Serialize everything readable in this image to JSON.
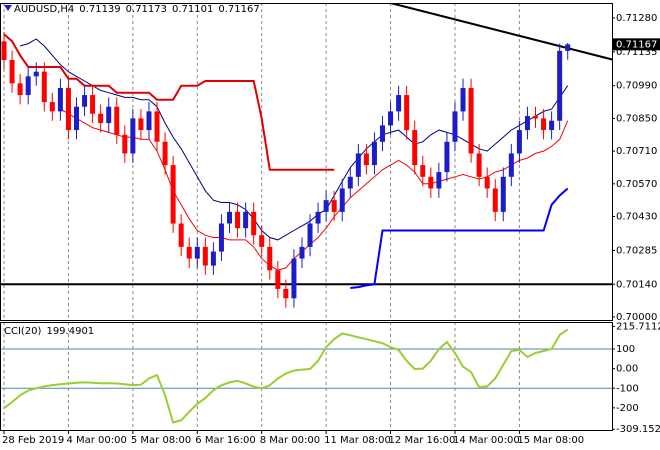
{
  "chart_data": [
    {
      "type": "candlestick",
      "symbol": "AUDUSD,H4",
      "up_color": "#1c1cc8",
      "down_color": "#ff0000",
      "open": [
        0.7118,
        0.711,
        0.71,
        0.7095,
        0.7103,
        0.7105,
        0.7092,
        0.7088,
        0.7098,
        0.708,
        0.709,
        0.7095,
        0.7087,
        0.7083,
        0.709,
        0.7078,
        0.707,
        0.7085,
        0.708,
        0.7088,
        0.7075,
        0.7065,
        0.704,
        0.703,
        0.7025,
        0.703,
        0.7022,
        0.7028,
        0.704,
        0.7045,
        0.7038,
        0.7045,
        0.7035,
        0.703,
        0.702,
        0.7012,
        0.7008,
        0.7025,
        0.703,
        0.704,
        0.7045,
        0.705,
        0.7045,
        0.7055,
        0.706,
        0.707,
        0.7065,
        0.7075,
        0.7082,
        0.7088,
        0.7095,
        0.708,
        0.7065,
        0.706,
        0.7055,
        0.7062,
        0.7075,
        0.7088,
        0.7098,
        0.707,
        0.706,
        0.7055,
        0.7045,
        0.706,
        0.707,
        0.708,
        0.7086,
        0.7085,
        0.708,
        0.7084,
        0.71139
      ],
      "high": [
        0.7122,
        0.7114,
        0.7104,
        0.7107,
        0.7109,
        0.7109,
        0.7096,
        0.7102,
        0.7102,
        0.7094,
        0.7099,
        0.7099,
        0.7091,
        0.7094,
        0.7094,
        0.7082,
        0.7089,
        0.7089,
        0.7092,
        0.7092,
        0.7079,
        0.7069,
        0.7044,
        0.7034,
        0.7034,
        0.7034,
        0.7032,
        0.7044,
        0.7049,
        0.7049,
        0.7049,
        0.7049,
        0.7039,
        0.7034,
        0.7024,
        0.7016,
        0.7029,
        0.7034,
        0.7044,
        0.7049,
        0.7054,
        0.7054,
        0.7059,
        0.7064,
        0.7074,
        0.7074,
        0.7079,
        0.7086,
        0.7092,
        0.7099,
        0.7099,
        0.7084,
        0.7069,
        0.7064,
        0.7066,
        0.7079,
        0.7092,
        0.7102,
        0.7102,
        0.7074,
        0.7064,
        0.7059,
        0.7064,
        0.7074,
        0.7084,
        0.709,
        0.709,
        0.7089,
        0.7088,
        0.7117,
        0.71173
      ],
      "low": [
        0.7106,
        0.7096,
        0.7091,
        0.7091,
        0.7099,
        0.7088,
        0.7084,
        0.7084,
        0.7076,
        0.7076,
        0.7086,
        0.7083,
        0.7079,
        0.7079,
        0.7074,
        0.7066,
        0.7066,
        0.7076,
        0.7076,
        0.7071,
        0.7061,
        0.7036,
        0.7026,
        0.7021,
        0.7021,
        0.7018,
        0.7018,
        0.7024,
        0.7036,
        0.7034,
        0.7034,
        0.7031,
        0.7026,
        0.7016,
        0.7008,
        0.7004,
        0.7004,
        0.7021,
        0.7026,
        0.7036,
        0.7041,
        0.7041,
        0.7041,
        0.7051,
        0.7056,
        0.7061,
        0.7061,
        0.7071,
        0.7078,
        0.7084,
        0.7076,
        0.7061,
        0.7056,
        0.7051,
        0.7051,
        0.7058,
        0.7071,
        0.7084,
        0.7066,
        0.7056,
        0.7051,
        0.7041,
        0.7041,
        0.7056,
        0.7066,
        0.7076,
        0.7081,
        0.7076,
        0.7076,
        0.708,
        0.71101
      ],
      "close": [
        0.711,
        0.71,
        0.7095,
        0.7103,
        0.7105,
        0.7092,
        0.7088,
        0.7098,
        0.708,
        0.709,
        0.7095,
        0.7087,
        0.7083,
        0.709,
        0.7078,
        0.707,
        0.7085,
        0.708,
        0.7088,
        0.7075,
        0.7065,
        0.704,
        0.703,
        0.7025,
        0.703,
        0.7022,
        0.7028,
        0.704,
        0.7045,
        0.7038,
        0.7045,
        0.7035,
        0.703,
        0.702,
        0.7012,
        0.7008,
        0.7025,
        0.703,
        0.704,
        0.7045,
        0.705,
        0.7045,
        0.7055,
        0.706,
        0.707,
        0.7065,
        0.7075,
        0.7082,
        0.7088,
        0.7095,
        0.708,
        0.7065,
        0.706,
        0.7055,
        0.7062,
        0.7075,
        0.7088,
        0.7098,
        0.707,
        0.706,
        0.7055,
        0.7045,
        0.706,
        0.707,
        0.708,
        0.7086,
        0.7085,
        0.708,
        0.7084,
        0.71139,
        0.71167
      ],
      "overlays": [
        {
          "color": "#000080",
          "width": 1,
          "values": [
            null,
            null,
            0.7116,
            0.7117,
            0.7119,
            0.7116,
            0.7112,
            0.7108,
            0.7105,
            0.7103,
            0.7101,
            0.7099,
            0.7097,
            0.7096,
            0.7095,
            0.7094,
            0.7094,
            0.7093,
            0.7093,
            0.709,
            0.7083,
            0.7077,
            0.7072,
            0.7066,
            0.706,
            0.7054,
            0.705,
            0.7049,
            0.7049,
            0.7048,
            0.7046,
            0.7042,
            0.7037,
            0.7034,
            0.7033,
            0.7035,
            0.7037,
            0.7039,
            0.7041,
            0.7044,
            0.7046,
            0.7052,
            0.7058,
            0.7064,
            0.7068,
            0.7072,
            0.7075,
            0.7078,
            0.7079,
            0.708,
            0.7077,
            0.7074,
            0.7075,
            0.7078,
            0.708,
            0.7079,
            0.7078,
            0.7076,
            0.7074,
            0.7072,
            0.7071,
            0.7074,
            0.7077,
            0.708,
            0.7082,
            0.7084,
            0.7086,
            0.7088,
            0.7089,
            0.7094,
            0.7099
          ]
        },
        {
          "color": "#ff0000",
          "width": 1,
          "values": [
            null,
            null,
            null,
            null,
            null,
            null,
            null,
            0.7089,
            0.7087,
            0.7085,
            0.7083,
            0.7081,
            0.708,
            0.7079,
            0.7078,
            0.7077,
            0.7077,
            0.7076,
            0.7076,
            0.7071,
            0.7063,
            0.7054,
            0.7048,
            0.7042,
            0.7037,
            0.7035,
            0.7034,
            0.7034,
            0.7033,
            0.7033,
            0.7033,
            0.703,
            0.7025,
            0.7022,
            0.702,
            0.7021,
            0.7025,
            0.7028,
            0.7031,
            0.7034,
            0.7038,
            0.7043,
            0.7047,
            0.7051,
            0.7054,
            0.7057,
            0.706,
            0.7063,
            0.7065,
            0.7067,
            0.7065,
            0.7062,
            0.7057,
            0.7057,
            0.7058,
            0.7059,
            0.706,
            0.7061,
            0.706,
            0.7059,
            0.706,
            0.7062,
            0.7063,
            0.7065,
            0.7067,
            0.7068,
            0.707,
            0.7071,
            0.7073,
            0.7076,
            0.7084
          ]
        },
        {
          "color": "#e00000",
          "width": 2,
          "values": [
            0.7121,
            0.7118,
            0.7112,
            0.7107,
            0.7107,
            0.7107,
            0.7107,
            0.7107,
            0.7102,
            0.7102,
            0.7099,
            0.7099,
            0.7099,
            0.7099,
            0.7096,
            0.7096,
            0.7096,
            0.7096,
            0.7096,
            0.7093,
            0.7093,
            0.7093,
            0.7099,
            0.7099,
            0.7099,
            0.7101,
            0.7101,
            0.7101,
            0.7101,
            0.7101,
            0.7101,
            0.7101,
            0.7085,
            0.7063,
            0.7063,
            0.7063,
            0.7063,
            0.7063,
            0.7063,
            0.7063,
            0.7063,
            0.7063,
            null,
            null,
            null,
            null,
            null,
            null,
            null,
            null,
            null,
            null,
            null,
            null,
            null,
            null,
            null,
            null,
            null,
            null,
            null,
            null,
            null,
            null,
            null,
            null,
            null,
            null,
            null,
            null,
            null
          ]
        },
        {
          "color": "#0000ff",
          "width": 2,
          "values": [
            null,
            null,
            null,
            null,
            null,
            null,
            null,
            null,
            null,
            null,
            null,
            null,
            null,
            null,
            null,
            null,
            null,
            null,
            null,
            null,
            null,
            null,
            null,
            null,
            null,
            null,
            null,
            null,
            null,
            null,
            null,
            null,
            null,
            null,
            null,
            null,
            null,
            null,
            null,
            null,
            null,
            null,
            null,
            0.70124,
            0.70128,
            0.70135,
            0.7014,
            0.7037,
            0.7037,
            0.7037,
            0.7037,
            0.7037,
            0.7037,
            0.7037,
            0.7037,
            0.7037,
            0.7037,
            0.7037,
            0.7037,
            0.7037,
            0.7037,
            0.7037,
            0.7037,
            0.7037,
            0.7037,
            0.7037,
            0.7037,
            0.7037,
            0.7048,
            0.7052,
            0.7055
          ]
        }
      ],
      "hline": 0.7014,
      "trendline": {
        "x": [
          48,
          76
        ],
        "values": [
          0.71344,
          0.71098
        ]
      },
      "xlim": [
        -0.5,
        75.5
      ],
      "ylim": [
        0.69987,
        0.71344
      ],
      "yticks": [
        {
          "value": 0.7128,
          "label": "0.71280"
        },
        0.71135,
        {
          "value": 0.7099,
          "label": "0.70990"
        },
        {
          "value": 0.7085,
          "label": "0.70850"
        },
        {
          "value": 0.7071,
          "label": "0.70710"
        },
        {
          "value": 0.7057,
          "label": "0.70570"
        },
        {
          "value": 0.7043,
          "label": "0.70430"
        },
        0.70285,
        {
          "value": 0.7014,
          "label": "0.70140"
        },
        {
          "value": 0.7,
          "label": "0.70000"
        }
      ],
      "xticks": [
        {
          "value": 0,
          "label": "28 Feb 2019"
        },
        {
          "value": 8,
          "label": "4 Mar 00:00"
        },
        {
          "value": 16,
          "label": "5 Mar 08:00"
        },
        {
          "value": 24,
          "label": "6 Mar 16:00"
        },
        {
          "value": 32,
          "label": "8 Mar 00:00"
        },
        {
          "value": 40,
          "label": "11 Mar 08:00"
        },
        {
          "value": 48,
          "label": "12 Mar 16:00"
        },
        {
          "value": 56,
          "label": "14 Mar 00:00"
        },
        {
          "value": 64,
          "label": "15 Mar 08:00"
        }
      ]
    },
    {
      "type": "line",
      "name": "CCI(20)",
      "color": "#9acd32",
      "values": [
        -203,
        -170,
        -136,
        -112,
        -100,
        -90,
        -84,
        -80,
        -76,
        -72,
        -70,
        -72,
        -74,
        -74,
        -76,
        -80,
        -84,
        -82,
        -50,
        -33,
        -136,
        -274,
        -264,
        -220,
        -180,
        -150,
        -110,
        -85,
        -70,
        -62,
        -75,
        -92,
        -100,
        -85,
        -50,
        -25,
        -10,
        -5,
        -2,
        40,
        110,
        150,
        180,
        170,
        160,
        150,
        140,
        130,
        110,
        95,
        40,
        -2,
        0,
        40,
        100,
        136,
        80,
        10,
        -18,
        -95,
        -90,
        -50,
        20,
        90,
        95,
        60,
        80,
        90,
        100,
        172,
        199.4901
      ],
      "xlim": [
        -0.5,
        75.5
      ],
      "ylim": [
        -313,
        238
      ],
      "yticks": [
        215.7112,
        100,
        {
          "value": 0,
          "label": "0.00"
        },
        -100,
        -200,
        -309.1521
      ],
      "levels": [
        100,
        -100
      ]
    }
  ]
}
